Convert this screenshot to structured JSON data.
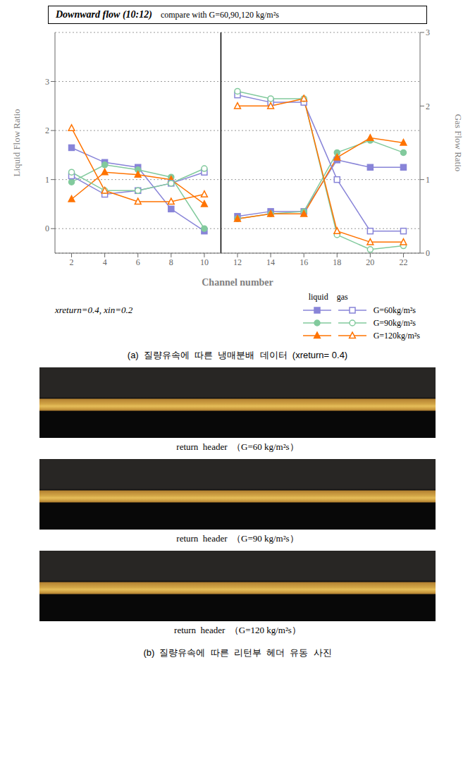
{
  "chart_data": {
    "type": "line",
    "title": "Downward flow (10:12)",
    "subtitle": "compare with G=60,90,120 kg/m²s",
    "x_label": "Channel number",
    "y_label": "Liquid Flow Ratio",
    "y2_label": "Gas Flow Ratio",
    "x": [
      2,
      4,
      6,
      8,
      10,
      12,
      14,
      16,
      18,
      20,
      22
    ],
    "xlim": [
      1,
      23
    ],
    "xticks": [
      2,
      4,
      6,
      8,
      10,
      12,
      14,
      16,
      18,
      20,
      22
    ],
    "ylim": [
      -0.5,
      4.0
    ],
    "yticks": [
      0,
      1,
      2,
      3
    ],
    "y2lim": [
      0,
      3
    ],
    "y2ticks": [
      0,
      1,
      2,
      3
    ],
    "grid": true,
    "separator_x": 11,
    "annotations": [
      "liquid    gas",
      "xreturn=0.4, xin=0.2"
    ],
    "captions": [
      "(a)  질량유속에  따른  냉매분배  데이터  (xreturn= 0.4)",
      "return  header  （G=60 kg/m²s）",
      "return  header  （G=90 kg/m²s）",
      "return  header  （G=120 kg/m²s）",
      "(b)  질량유속에  따른  리턴부  헤더  유동  사진"
    ],
    "series": [
      {
        "name": "G=60kg/m²s",
        "axis": "y",
        "marker": "square",
        "color": "#8884d8",
        "values": [
          1.65,
          1.35,
          1.25,
          0.4,
          -0.05,
          0.25,
          0.35,
          0.35,
          1.4,
          1.25,
          1.25
        ]
      },
      {
        "name": "G=90kg/m²s",
        "axis": "y",
        "marker": "circle",
        "color": "#82ca9d",
        "values": [
          0.95,
          1.3,
          1.2,
          1.05,
          0.0,
          0.2,
          0.3,
          0.35,
          1.55,
          1.8,
          1.55
        ]
      },
      {
        "name": "G=120kg/m²s",
        "axis": "y",
        "marker": "triangle",
        "color": "#ff7300",
        "values": [
          0.6,
          1.15,
          1.1,
          1.0,
          0.5,
          0.2,
          0.3,
          0.3,
          1.45,
          1.85,
          1.75
        ]
      },
      {
        "name": "G=60kg/m²s",
        "axis": "y2",
        "marker": "open-square",
        "color": "#8884d8",
        "values": [
          1.05,
          0.8,
          0.85,
          0.95,
          1.1,
          2.15,
          2.05,
          2.05,
          1.0,
          0.3,
          0.3
        ]
      },
      {
        "name": "G=90kg/m²s",
        "axis": "y2",
        "marker": "open-circle",
        "color": "#82ca9d",
        "values": [
          1.1,
          0.85,
          0.85,
          0.95,
          1.15,
          2.2,
          2.1,
          2.1,
          0.25,
          0.05,
          0.1
        ]
      },
      {
        "name": "G=120kg/m²s",
        "axis": "y2",
        "marker": "open-triangle",
        "color": "#ff7300",
        "values": [
          1.7,
          0.85,
          0.7,
          0.7,
          0.8,
          2.0,
          2.0,
          2.1,
          0.3,
          0.15,
          0.15
        ]
      }
    ]
  }
}
